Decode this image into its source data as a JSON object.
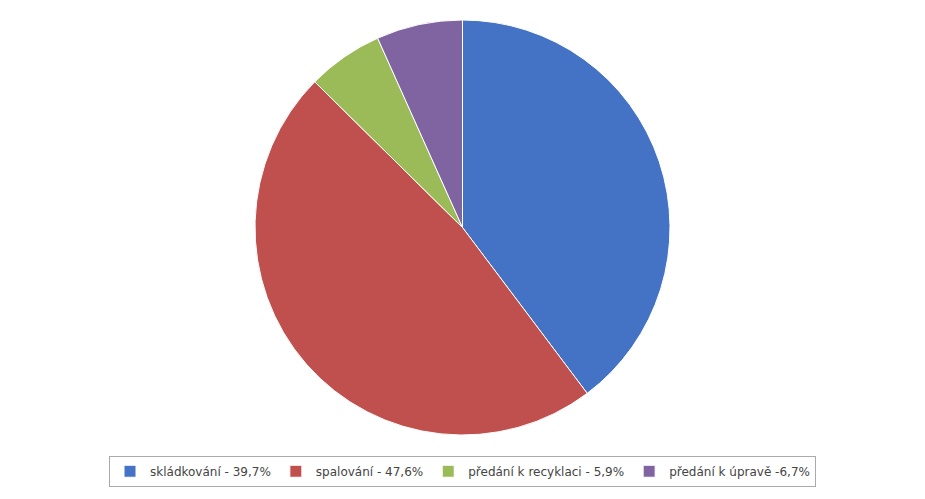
{
  "chart_data": {
    "type": "pie",
    "categories": [
      "skládkování - 39,7%",
      "spalování - 47,6%",
      "předání k recyklaci - 5,9%",
      "předání k úpravě -6,7%"
    ],
    "values": [
      39.7,
      47.6,
      5.9,
      6.7
    ],
    "colors": [
      "#4472C4",
      "#C0504D",
      "#9BBB59",
      "#8064A2"
    ],
    "legend": "bottom",
    "data_labels": false
  }
}
